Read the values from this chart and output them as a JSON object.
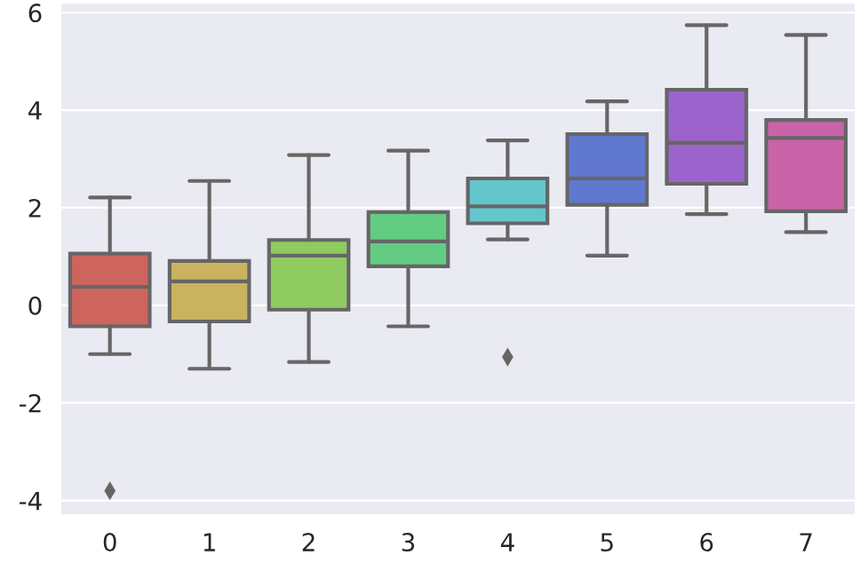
{
  "chart_data": {
    "type": "box",
    "categories": [
      "0",
      "1",
      "2",
      "3",
      "4",
      "5",
      "6",
      "7"
    ],
    "boxes": [
      {
        "low": -1.0,
        "q1": -0.43,
        "median": 0.38,
        "q3": 1.06,
        "high": 2.21,
        "outliers": [
          -3.8
        ]
      },
      {
        "low": -1.3,
        "q1": -0.33,
        "median": 0.49,
        "q3": 0.91,
        "high": 2.55
      },
      {
        "low": -1.16,
        "q1": -0.09,
        "median": 1.02,
        "q3": 1.34,
        "high": 3.08
      },
      {
        "low": -0.43,
        "q1": 0.8,
        "median": 1.31,
        "q3": 1.91,
        "high": 3.17
      },
      {
        "low": 1.35,
        "q1": 1.68,
        "median": 2.03,
        "q3": 2.6,
        "high": 3.38,
        "outliers": [
          -1.06
        ]
      },
      {
        "low": 1.02,
        "q1": 2.06,
        "median": 2.6,
        "q3": 3.51,
        "high": 4.18
      },
      {
        "low": 1.87,
        "q1": 2.49,
        "median": 3.33,
        "q3": 4.42,
        "high": 5.74
      },
      {
        "low": 1.5,
        "q1": 1.93,
        "median": 3.43,
        "q3": 3.8,
        "high": 5.54
      }
    ],
    "colors": [
      "#cd645e",
      "#c9b35e",
      "#8fcb61",
      "#62cc82",
      "#62c6cc",
      "#6178cf",
      "#9b63cb",
      "#cb63a8"
    ],
    "ylim": [
      -4.3,
      6.2
    ],
    "yticks": [
      -4,
      -2,
      0,
      2,
      4,
      6
    ],
    "grid": "y",
    "marker": "diamond"
  }
}
